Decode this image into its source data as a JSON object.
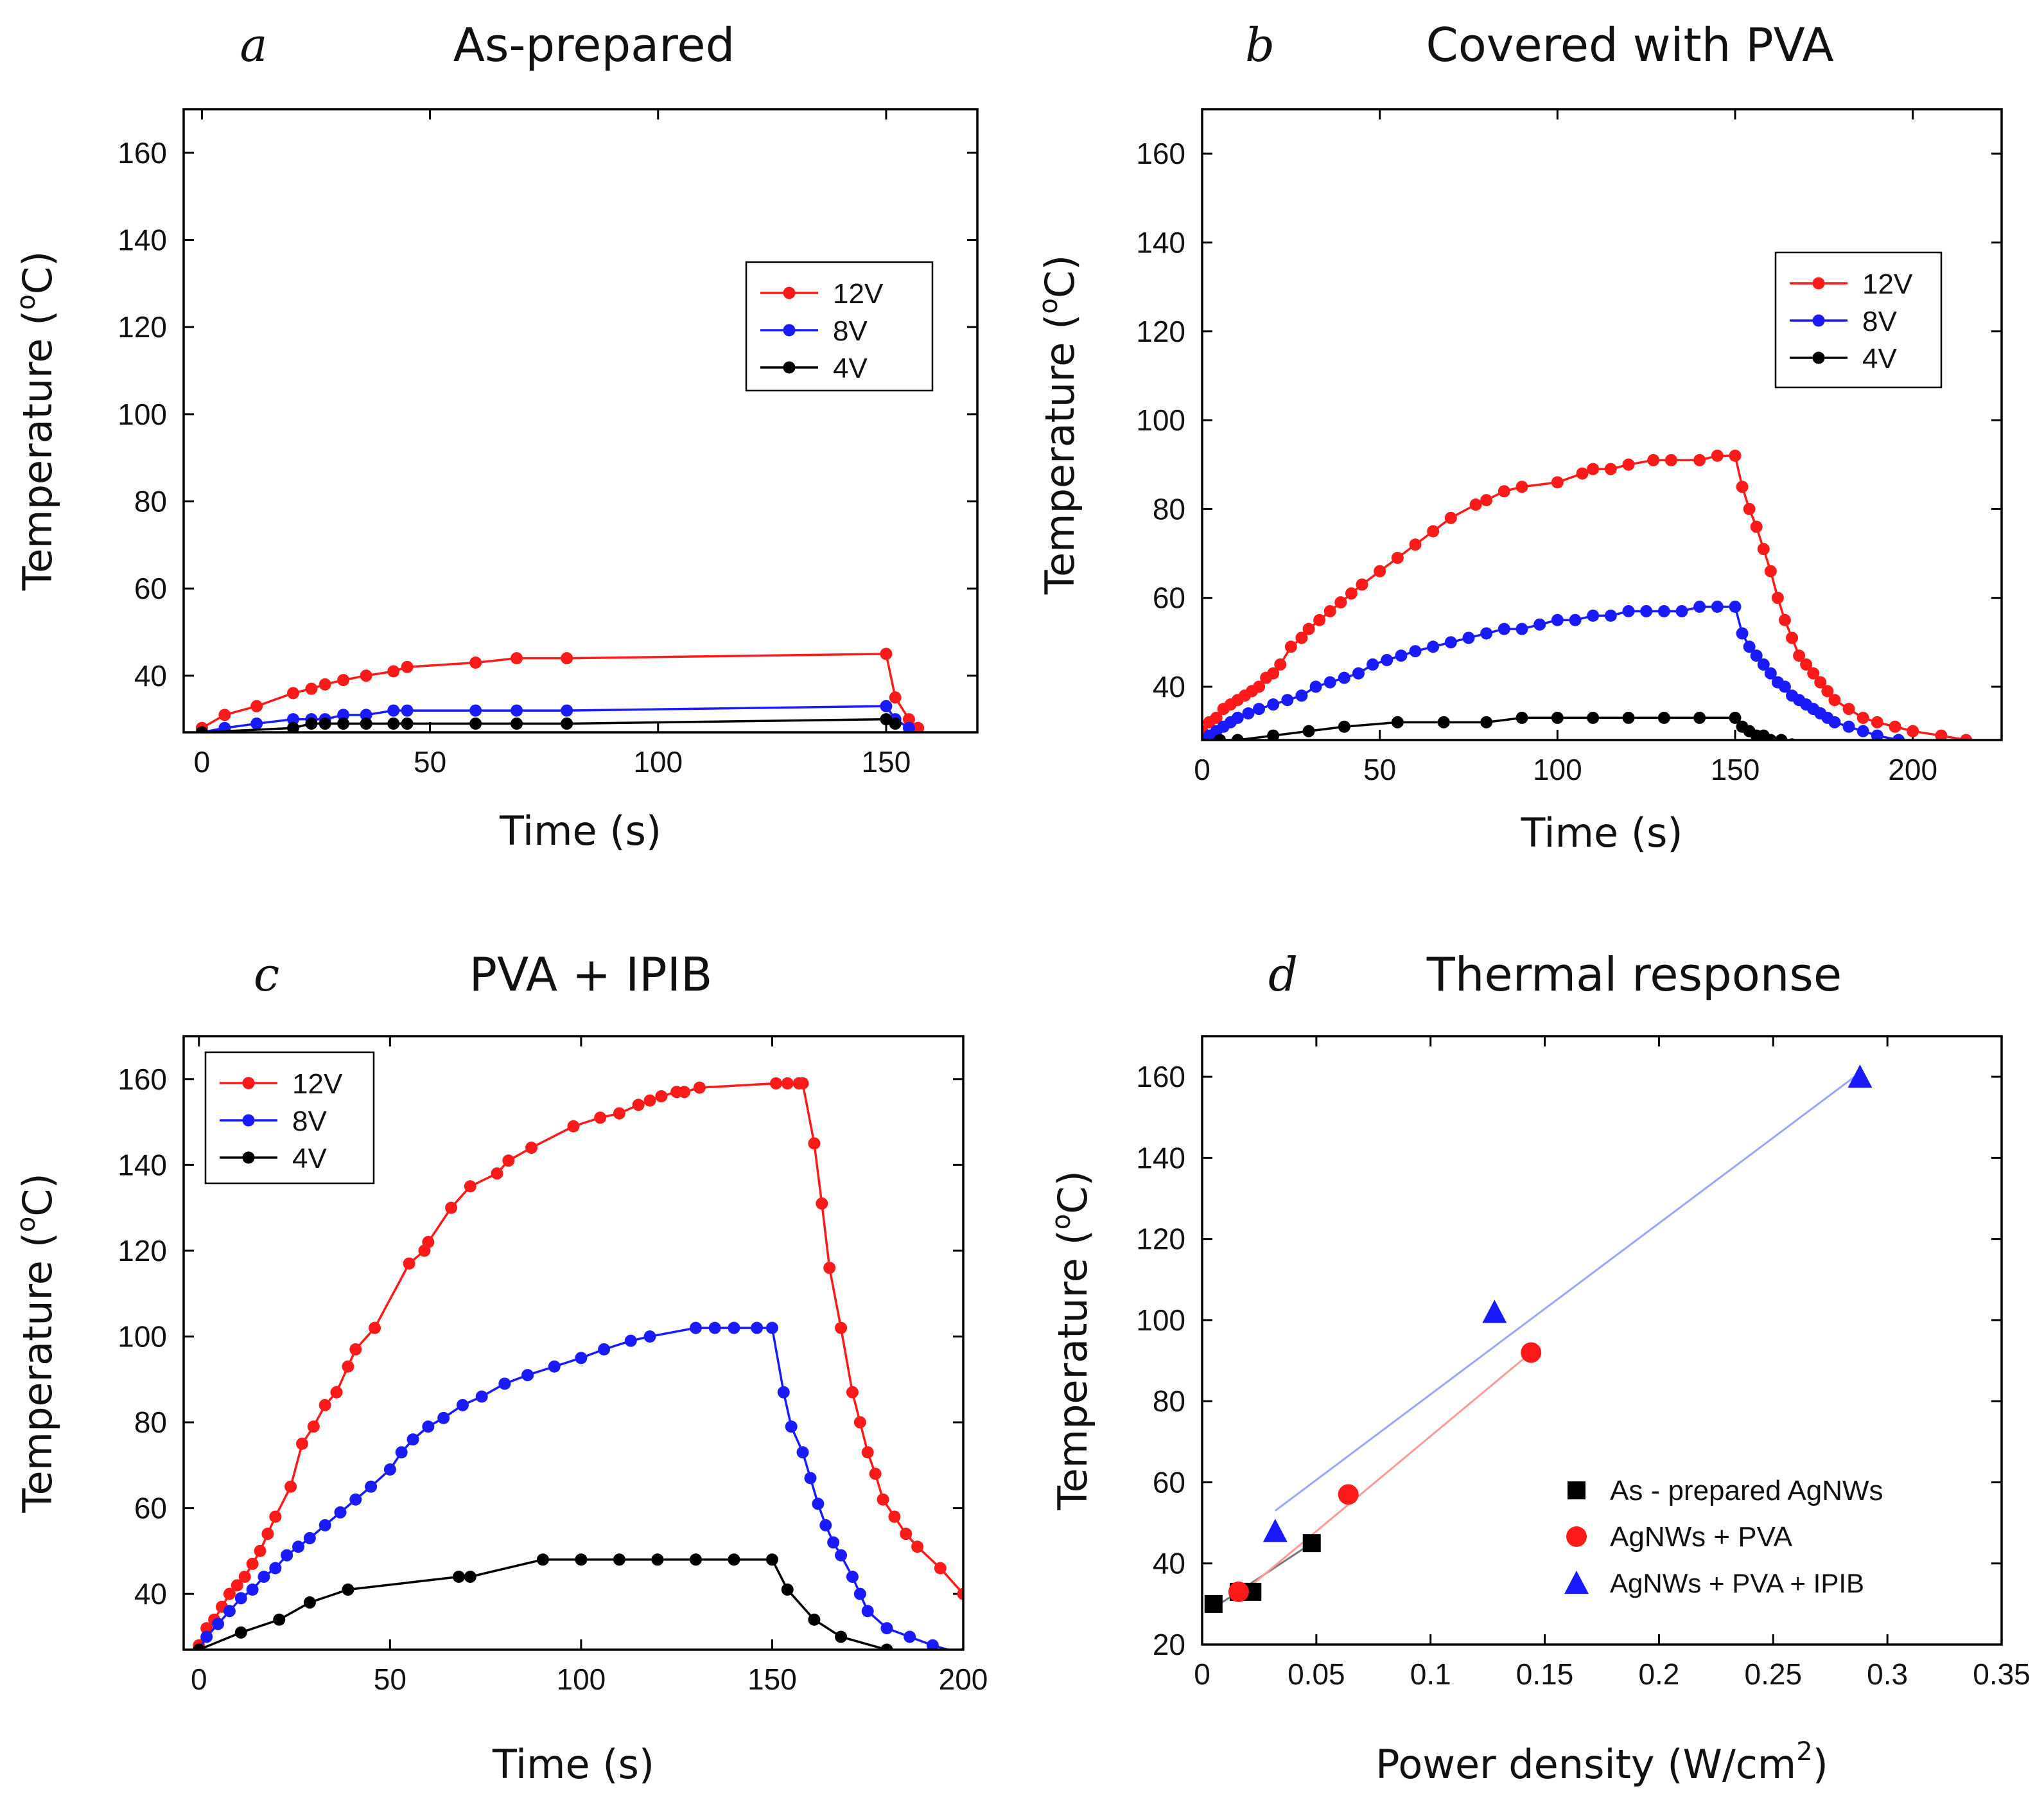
{
  "figure": {
    "colors": {
      "red": "#ff1a1a",
      "blue": "#1a1aff",
      "black": "#000000",
      "fit_blue": "#9aa6ff",
      "fit_red": "#ff9a9a",
      "fit_black": "#777777"
    }
  },
  "chart_data": [
    {
      "panel": "a",
      "title": "As-prepared",
      "type": "line",
      "xlabel": "Time (s)",
      "ylabel": "Temperature (°C)",
      "ylabel_unit": "oC",
      "xlim": [
        -4,
        170
      ],
      "ylim": [
        27,
        170
      ],
      "xticks": [
        0,
        50,
        100,
        150
      ],
      "yticks": [
        40,
        60,
        80,
        100,
        120,
        140,
        160
      ],
      "legend_position": "upper-right",
      "series": [
        {
          "name": "12V",
          "color": "#ff1a1a",
          "x": [
            0,
            5,
            12,
            20,
            24,
            27,
            31,
            36,
            42,
            45,
            60,
            69,
            80,
            150,
            152,
            155,
            157
          ],
          "y": [
            28,
            31,
            33,
            36,
            37,
            38,
            39,
            40,
            41,
            42,
            43,
            44,
            44,
            45,
            35,
            30,
            28
          ]
        },
        {
          "name": "8V",
          "color": "#1a1aff",
          "x": [
            0,
            5,
            12,
            20,
            24,
            27,
            31,
            36,
            42,
            45,
            60,
            69,
            80,
            150,
            152,
            155
          ],
          "y": [
            27,
            28,
            29,
            30,
            30,
            30,
            31,
            31,
            32,
            32,
            32,
            32,
            32,
            33,
            30,
            28
          ]
        },
        {
          "name": "4V",
          "color": "#000000",
          "x": [
            0,
            20,
            24,
            27,
            31,
            36,
            42,
            45,
            60,
            69,
            80,
            150,
            152
          ],
          "y": [
            27,
            28,
            29,
            29,
            29,
            29,
            29,
            29,
            29,
            29,
            29,
            30,
            29
          ]
        }
      ]
    },
    {
      "panel": "b",
      "title": "Covered with PVA",
      "type": "line",
      "xlabel": "Time (s)",
      "ylabel": "Temperature (°C)",
      "ylabel_unit": "oC",
      "xlim": [
        0,
        225
      ],
      "ylim": [
        28,
        170
      ],
      "xticks": [
        0,
        50,
        100,
        150,
        200
      ],
      "yticks": [
        40,
        60,
        80,
        100,
        120,
        140,
        160
      ],
      "legend_position": "upper-right",
      "series": [
        {
          "name": "12V",
          "color": "#ff1a1a",
          "x": [
            0,
            2,
            4,
            6,
            8,
            10,
            12,
            14,
            16,
            18,
            20,
            22,
            25,
            28,
            30,
            33,
            36,
            39,
            42,
            45,
            50,
            55,
            60,
            65,
            70,
            77,
            80,
            85,
            90,
            100,
            107,
            110,
            115,
            120,
            127,
            132,
            140,
            145,
            150,
            152,
            154,
            156,
            158,
            160,
            162,
            164,
            166,
            168,
            170,
            172,
            174,
            176,
            178,
            182,
            186,
            190,
            195,
            200,
            208,
            215
          ],
          "y": [
            30,
            32,
            33,
            35,
            36,
            37,
            38,
            39,
            40,
            42,
            43,
            45,
            49,
            51,
            53,
            55,
            57,
            59,
            61,
            63,
            66,
            69,
            72,
            75,
            78,
            81,
            82,
            84,
            85,
            86,
            88,
            89,
            89,
            90,
            91,
            91,
            91,
            92,
            92,
            85,
            80,
            76,
            71,
            66,
            60,
            55,
            51,
            47,
            45,
            43,
            41,
            39,
            37,
            35,
            33,
            32,
            31,
            30,
            29,
            28
          ]
        },
        {
          "name": "8V",
          "color": "#1a1aff",
          "x": [
            0,
            2,
            4,
            6,
            8,
            10,
            13,
            16,
            20,
            24,
            28,
            32,
            36,
            40,
            44,
            48,
            52,
            56,
            60,
            65,
            70,
            75,
            80,
            85,
            90,
            95,
            100,
            105,
            110,
            115,
            120,
            125,
            130,
            135,
            140,
            145,
            150,
            152,
            154,
            156,
            158,
            160,
            162,
            164,
            166,
            168,
            170,
            172,
            174,
            176,
            178,
            182,
            186,
            190,
            196
          ],
          "y": [
            28,
            29,
            30,
            31,
            32,
            33,
            34,
            35,
            36,
            37,
            38,
            40,
            41,
            42,
            43,
            45,
            46,
            47,
            48,
            49,
            50,
            51,
            52,
            53,
            53,
            54,
            55,
            55,
            56,
            56,
            57,
            57,
            57,
            57,
            58,
            58,
            58,
            52,
            49,
            47,
            45,
            43,
            41,
            40,
            38,
            37,
            36,
            35,
            34,
            33,
            32,
            31,
            30,
            29,
            28
          ]
        },
        {
          "name": "4V",
          "color": "#000000",
          "x": [
            0,
            5,
            10,
            20,
            30,
            40,
            55,
            68,
            80,
            90,
            100,
            110,
            120,
            130,
            140,
            150,
            152,
            154,
            156,
            158,
            160,
            163,
            166
          ],
          "y": [
            27,
            28,
            28,
            29,
            30,
            31,
            32,
            32,
            32,
            33,
            33,
            33,
            33,
            33,
            33,
            33,
            31,
            30,
            29,
            29,
            28,
            28,
            27
          ]
        }
      ]
    },
    {
      "panel": "c",
      "title": "PVA + IPIB",
      "type": "line",
      "xlabel": "Time (s)",
      "ylabel": "Temperature (°C)",
      "ylabel_unit": "oC",
      "xlim": [
        -4,
        200
      ],
      "ylim": [
        27,
        170
      ],
      "xticks": [
        0,
        50,
        100,
        150,
        200
      ],
      "yticks": [
        40,
        60,
        80,
        100,
        120,
        140,
        160
      ],
      "legend_position": "upper-left",
      "series": [
        {
          "name": "12V",
          "color": "#ff1a1a",
          "x": [
            0,
            2,
            4,
            6,
            8,
            10,
            12,
            14,
            16,
            18,
            20,
            24,
            27,
            30,
            33,
            36,
            39,
            41,
            46,
            55,
            59,
            60,
            66,
            71,
            78,
            81,
            87,
            98,
            105,
            110,
            115,
            118,
            121,
            125,
            127,
            131,
            151,
            154,
            157,
            158,
            161,
            163,
            165,
            168,
            171,
            173,
            175,
            177,
            179,
            182,
            185,
            188,
            194,
            200
          ],
          "y": [
            28,
            32,
            34,
            37,
            40,
            42,
            44,
            47,
            50,
            54,
            58,
            65,
            75,
            79,
            84,
            87,
            93,
            97,
            102,
            117,
            120,
            122,
            130,
            135,
            138,
            141,
            144,
            149,
            151,
            152,
            154,
            155,
            156,
            157,
            157,
            158,
            159,
            159,
            159,
            159,
            145,
            131,
            116,
            102,
            87,
            80,
            73,
            68,
            62,
            58,
            54,
            51,
            46,
            40
          ]
        },
        {
          "name": "8V",
          "color": "#1a1aff",
          "x": [
            0,
            2,
            5,
            8,
            11,
            14,
            17,
            20,
            23,
            26,
            29,
            33,
            37,
            41,
            45,
            50,
            53,
            56,
            60,
            64,
            69,
            74,
            80,
            86,
            93,
            100,
            106,
            113,
            118,
            130,
            135,
            140,
            146,
            150,
            153,
            155,
            158,
            160,
            162,
            164,
            166,
            168,
            171,
            173,
            175,
            180,
            186,
            192,
            200
          ],
          "y": [
            27,
            30,
            33,
            36,
            39,
            41,
            44,
            46,
            49,
            51,
            53,
            56,
            59,
            62,
            65,
            69,
            73,
            76,
            79,
            81,
            84,
            86,
            89,
            91,
            93,
            95,
            97,
            99,
            100,
            102,
            102,
            102,
            102,
            102,
            87,
            79,
            73,
            67,
            61,
            56,
            52,
            49,
            44,
            40,
            36,
            32,
            30,
            28,
            26
          ]
        },
        {
          "name": "4V",
          "color": "#000000",
          "x": [
            0,
            11,
            21,
            29,
            39,
            68,
            71,
            90,
            100,
            110,
            120,
            130,
            140,
            150,
            154,
            161,
            168,
            180
          ],
          "y": [
            27,
            31,
            34,
            38,
            41,
            44,
            44,
            48,
            48,
            48,
            48,
            48,
            48,
            48,
            41,
            34,
            30,
            27
          ]
        }
      ]
    },
    {
      "panel": "d",
      "title": "Thermal response",
      "type": "scatter",
      "xlabel": "Power density (W/cm²)",
      "xlabel_unit": "2",
      "ylabel": "Temperature (°C)",
      "ylabel_unit": "oC",
      "xlim": [
        0,
        0.35
      ],
      "ylim": [
        20,
        170
      ],
      "xticks": [
        0,
        0.05,
        0.1,
        0.15,
        0.2,
        0.25,
        0.3,
        0.35
      ],
      "xtick_labels": [
        "0",
        "0.05",
        "0.1",
        "0.15",
        "0.2",
        "0.25",
        "0.3",
        "0.35"
      ],
      "yticks": [
        20,
        40,
        60,
        80,
        100,
        120,
        140,
        160
      ],
      "legend_position": "lower-right",
      "series": [
        {
          "name": "As - prepared AgNWs",
          "marker": "square",
          "color": "#000000",
          "x": [
            0.005,
            0.016,
            0.022,
            0.048
          ],
          "y": [
            30,
            33,
            33,
            45
          ],
          "fit": {
            "x": [
              0.005,
              0.048
            ],
            "y": [
              29,
              45
            ],
            "color": "#777777"
          }
        },
        {
          "name": "AgNWs + PVA",
          "marker": "circle",
          "color": "#ff1a1a",
          "x": [
            0.016,
            0.064,
            0.144
          ],
          "y": [
            33,
            57,
            92
          ],
          "fit": {
            "x": [
              0.016,
              0.144
            ],
            "y": [
              32,
              92
            ],
            "color": "#ff9a9a"
          }
        },
        {
          "name": "AgNWs + PVA + IPIB",
          "marker": "triangle",
          "color": "#1a1aff",
          "x": [
            0.032,
            0.128,
            0.288
          ],
          "y": [
            48,
            102,
            160
          ],
          "fit": {
            "x": [
              0.032,
              0.288
            ],
            "y": [
              53,
              161
            ],
            "color": "#9aa6ff"
          }
        }
      ]
    }
  ]
}
